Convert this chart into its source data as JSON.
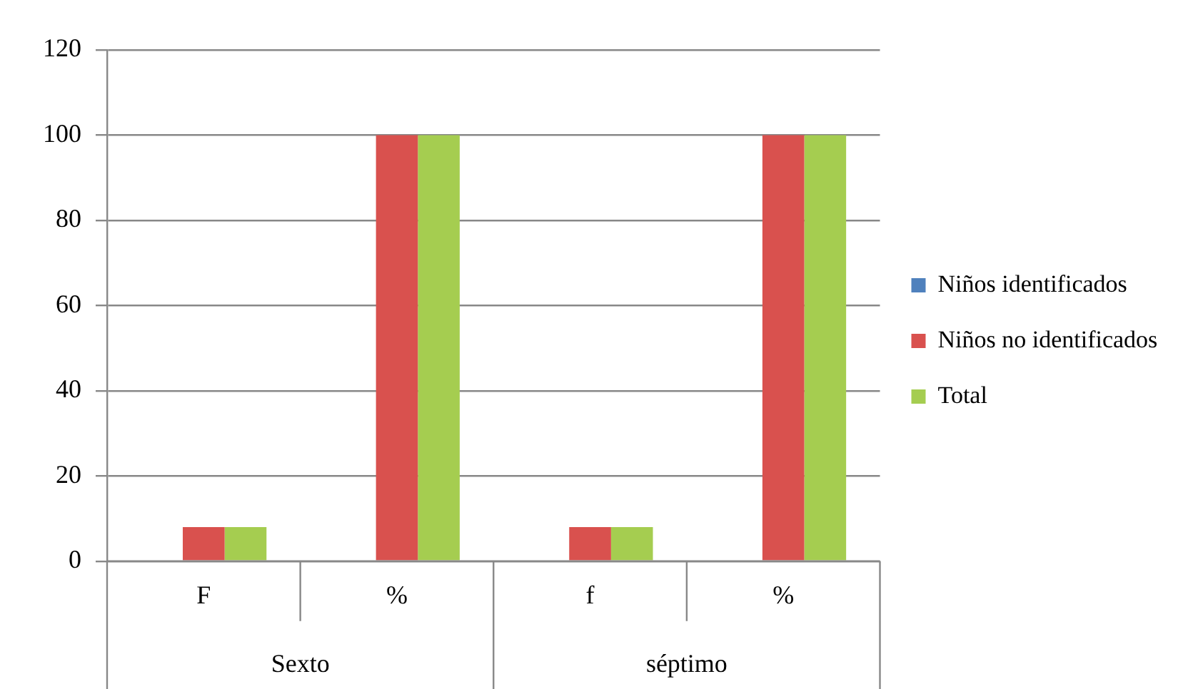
{
  "chart_data": {
    "type": "bar",
    "categories": [
      "F",
      "%",
      "f",
      "%"
    ],
    "series": [
      {
        "name": "Niños identificados",
        "color": "#4f81bd",
        "values": [
          0,
          0,
          0,
          0
        ]
      },
      {
        "name": "Niños no identificados",
        "color": "#d9514e",
        "values": [
          8,
          100,
          8,
          100
        ]
      },
      {
        "name": "Total",
        "color": "#a5cd50",
        "values": [
          8,
          100,
          8,
          100
        ]
      }
    ],
    "annotations": [
      "Sexto",
      "séptimo"
    ],
    "ylim": [
      0,
      120
    ],
    "yticks": [
      0,
      20,
      40,
      60,
      80,
      100,
      120
    ],
    "grid": "y",
    "legend": "right"
  }
}
